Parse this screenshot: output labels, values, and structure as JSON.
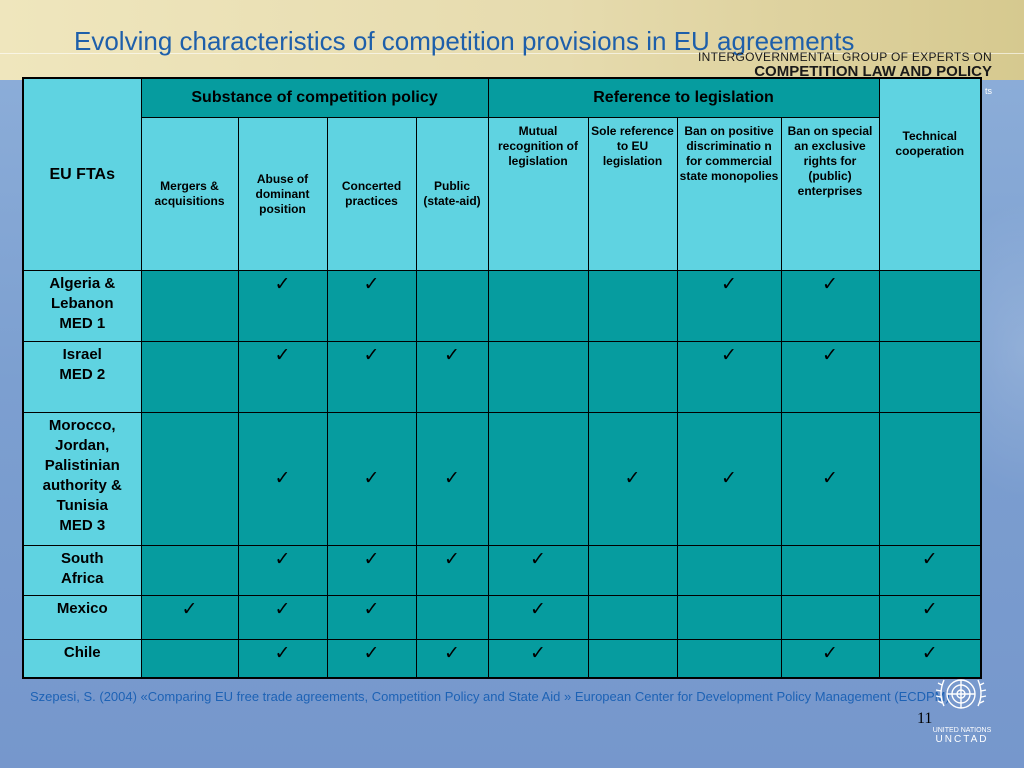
{
  "slide": {
    "title": "Evolving characteristics of competition provisions in EU agreements",
    "brand_line1": "INTERGOVERNMENTAL GROUP OF EXPERTS ON",
    "brand_line2": "COMPETITION LAW AND POLICY",
    "brand_line3": "ts",
    "footer_citation": "Szepesi, S. (2004) «Comparing EU free trade agreements, Competition Policy and State Aid » European Center for Development Policy Management (ECDPM)",
    "page_number": "11",
    "logo_text_1": "UNITED NATIONS",
    "logo_text_2": "UNCTAD"
  },
  "table": {
    "fta_header": "EU FTAs",
    "group_substance": "Substance of competition policy",
    "group_reference": "Reference to legislation",
    "technical_header": "Technical cooperation",
    "columns": [
      "Mergers & acquisitions",
      "Abuse of dominant position",
      "Concerted practices",
      "Public (state-aid)",
      "Mutual recognition of legislation",
      "Sole reference to EU legislation",
      "Ban on positive discriminatio n for commercial state monopolies",
      "Ban on special an exclusive rights for (public) enterprises"
    ],
    "check_glyph": "✓",
    "rows": [
      {
        "label": [
          "Algeria &",
          "Lebanon",
          "MED 1"
        ],
        "checks": [
          false,
          true,
          true,
          false,
          false,
          false,
          true,
          true,
          false
        ]
      },
      {
        "label": [
          "Israel",
          "MED 2"
        ],
        "checks": [
          false,
          true,
          true,
          true,
          false,
          false,
          true,
          true,
          false
        ]
      },
      {
        "label": [
          "Morocco,",
          "Jordan,",
          "Palistinian",
          "authority &",
          "Tunisia",
          "MED 3"
        ],
        "checks": [
          false,
          true,
          true,
          true,
          false,
          true,
          true,
          true,
          false
        ]
      },
      {
        "label": [
          "South",
          "Africa"
        ],
        "checks": [
          false,
          true,
          true,
          true,
          true,
          false,
          false,
          false,
          true
        ]
      },
      {
        "label": [
          "Mexico"
        ],
        "checks": [
          true,
          true,
          true,
          false,
          true,
          false,
          false,
          false,
          true
        ]
      },
      {
        "label": [
          "Chile"
        ],
        "checks": [
          false,
          true,
          true,
          true,
          true,
          false,
          false,
          true,
          true
        ]
      }
    ]
  }
}
